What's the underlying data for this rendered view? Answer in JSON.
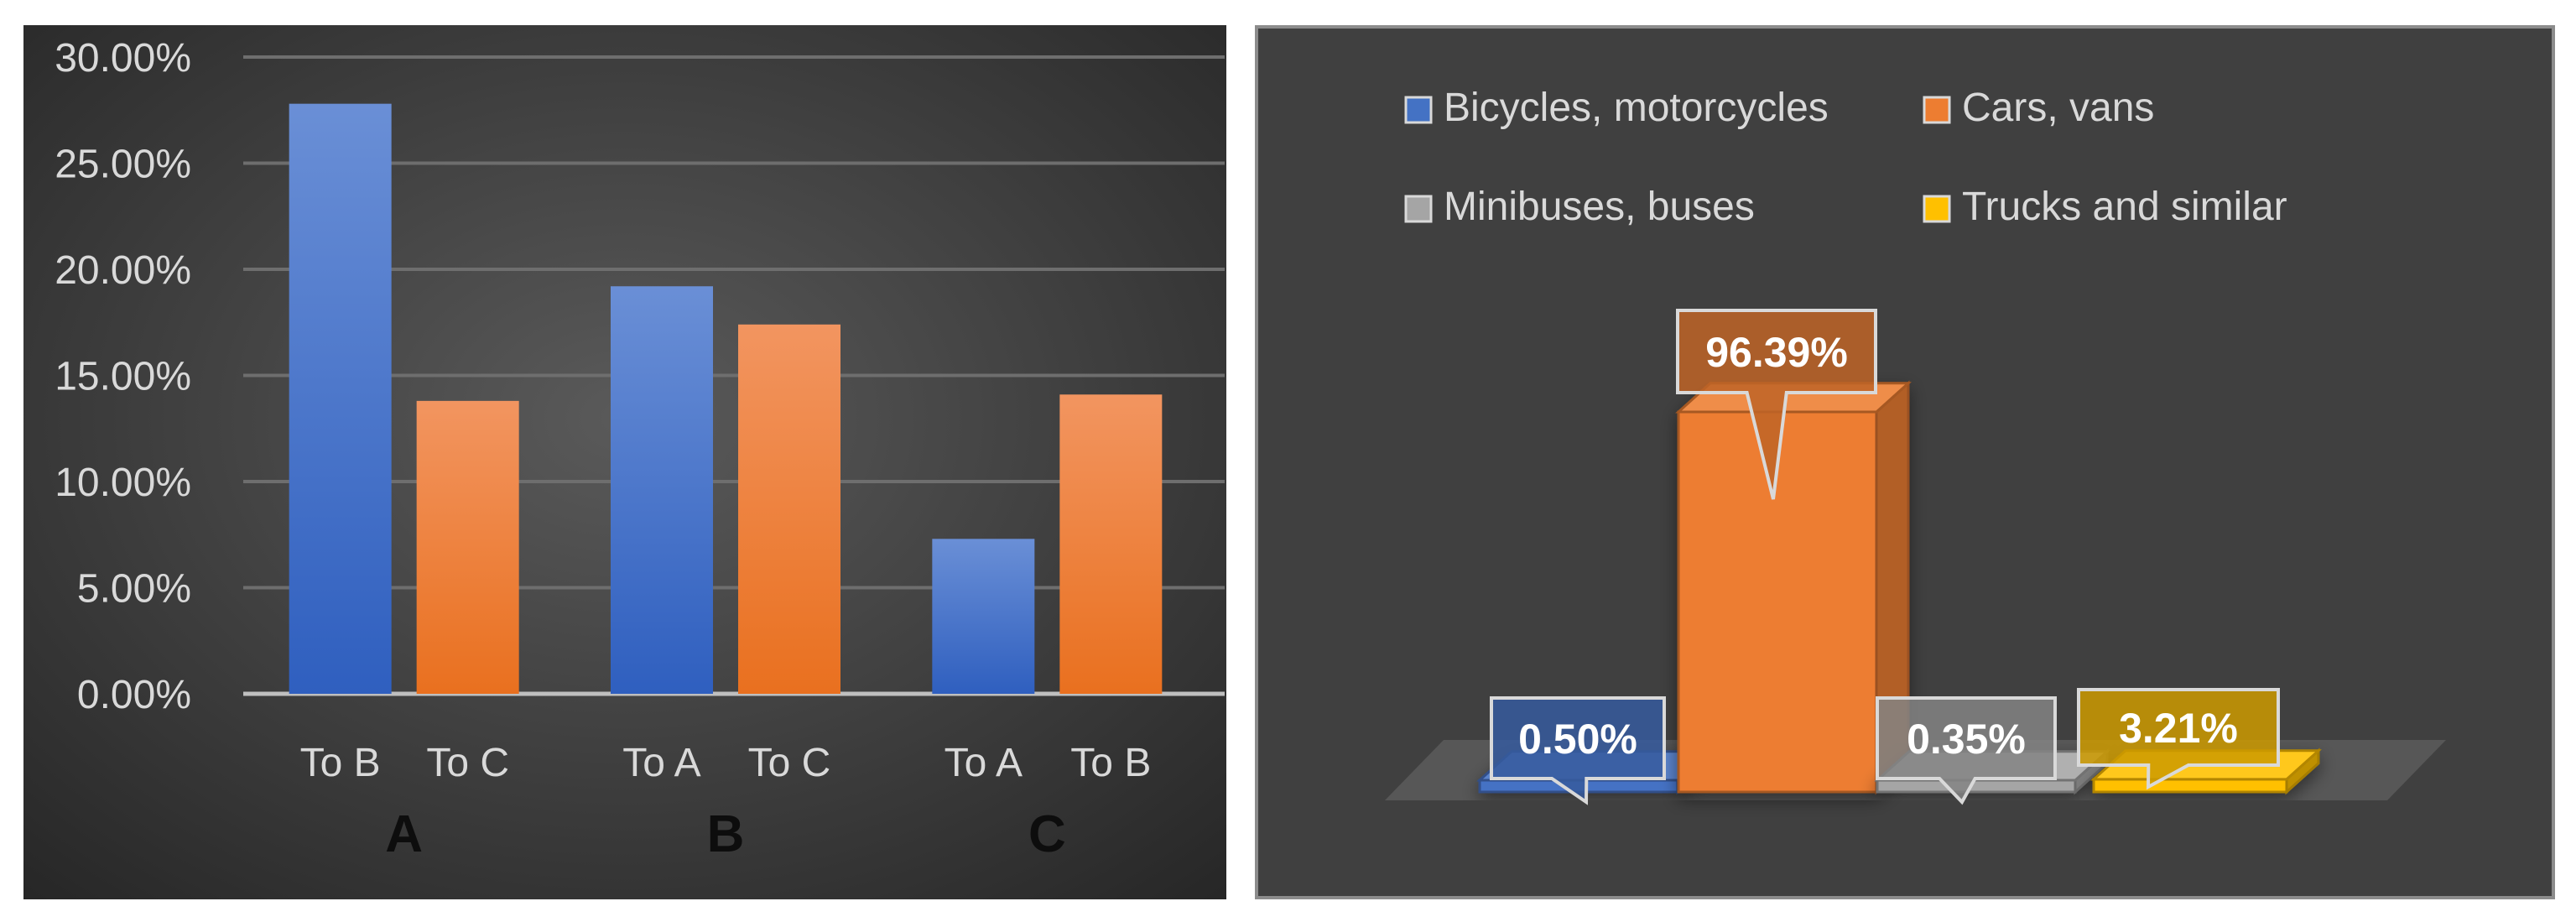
{
  "chart_data": [
    {
      "type": "bar",
      "title": "",
      "ylim": [
        0,
        30
      ],
      "y_ticks": [
        "0.00%",
        "5.00%",
        "10.00%",
        "15.00%",
        "20.00%",
        "25.00%",
        "30.00%"
      ],
      "groups": [
        {
          "label": "A",
          "bars": [
            {
              "label": "To B",
              "value": 27.8,
              "color": "blue"
            },
            {
              "label": "To C",
              "value": 13.8,
              "color": "orange"
            }
          ]
        },
        {
          "label": "B",
          "bars": [
            {
              "label": "To A",
              "value": 19.2,
              "color": "blue"
            },
            {
              "label": "To C",
              "value": 17.4,
              "color": "orange"
            }
          ]
        },
        {
          "label": "C",
          "bars": [
            {
              "label": "To A",
              "value": 7.3,
              "color": "blue"
            },
            {
              "label": "To B",
              "value": 14.1,
              "color": "orange"
            }
          ]
        }
      ],
      "colors": {
        "blue": "#4472c4",
        "orange": "#ed7d31"
      },
      "grid": true,
      "legend": "none"
    },
    {
      "type": "bar",
      "style": "3d",
      "title": "",
      "legend_position": "top",
      "categories": [
        "Bicycles, motorcycles",
        "Cars, vans",
        "Minibuses, buses",
        "Trucks and similar"
      ],
      "values": [
        0.5,
        96.39,
        0.35,
        3.21
      ],
      "data_labels": [
        "0.50%",
        "96.39%",
        "0.35%",
        "3.21%"
      ],
      "colors": [
        "#4472c4",
        "#ed7d31",
        "#a5a5a5",
        "#ffc000"
      ]
    }
  ]
}
